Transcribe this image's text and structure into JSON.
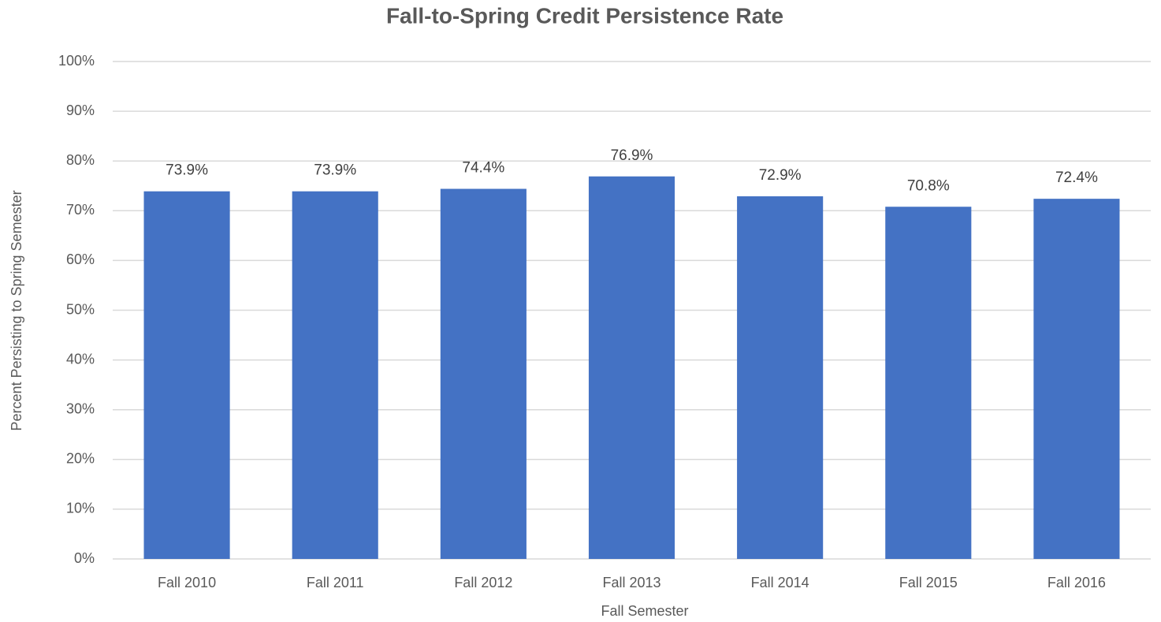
{
  "chart_data": {
    "type": "bar",
    "title": "Fall-to-Spring Credit Persistence Rate",
    "x_label": "Fall Semester",
    "y_label": "Percent Persisting to Spring Semester",
    "categories": [
      "Fall 2010",
      "Fall 2011",
      "Fall 2012",
      "Fall 2013",
      "Fall 2014",
      "Fall 2015",
      "Fall 2016"
    ],
    "values": [
      73.9,
      73.9,
      74.4,
      76.9,
      72.9,
      70.8,
      72.4
    ],
    "value_labels": [
      "73.9%",
      "73.9%",
      "74.4%",
      "76.9%",
      "72.9%",
      "70.8%",
      "72.4%"
    ],
    "color": "#4472c4",
    "ylim": [
      0,
      100
    ],
    "yticks": [
      {
        "value": 0,
        "label": "0%"
      },
      {
        "value": 10,
        "label": "10%"
      },
      {
        "value": 20,
        "label": "20%"
      },
      {
        "value": 30,
        "label": "30%"
      },
      {
        "value": 40,
        "label": "40%"
      },
      {
        "value": 50,
        "label": "50%"
      },
      {
        "value": 60,
        "label": "60%"
      },
      {
        "value": 70,
        "label": "70%"
      },
      {
        "value": 80,
        "label": "80%"
      },
      {
        "value": 90,
        "label": "90%"
      },
      {
        "value": 100,
        "label": "100%"
      }
    ],
    "grid": true
  }
}
